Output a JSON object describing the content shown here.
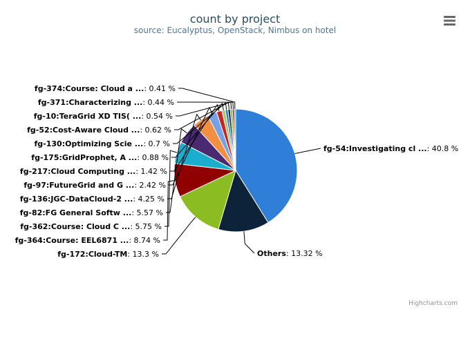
{
  "chart_data": {
    "type": "pie",
    "title": "count by project",
    "subtitle": "source: Eucalyptus, OpenStack, Nimbus on hotel",
    "credits": "Highcharts.com",
    "menu_icon": "hamburger-menu-icon",
    "slices": [
      {
        "name": "fg-54:Investigating cl ...",
        "value": 40.8,
        "label": "40.8 %",
        "color": "#2f7ed8"
      },
      {
        "name": "Others",
        "value": 13.32,
        "label": "13.32 %",
        "color": "#0d233a"
      },
      {
        "name": "fg-172:Cloud-TM",
        "value": 13.3,
        "label": "13.3 %",
        "color": "#8bbc21"
      },
      {
        "name": "fg-364:Course: EEL6871 ...",
        "value": 8.74,
        "label": "8.74 %",
        "color": "#910000"
      },
      {
        "name": "fg-362:Course: Cloud C ...",
        "value": 5.75,
        "label": "5.75 %",
        "color": "#1aadce"
      },
      {
        "name": "fg-82:FG General Softw ...",
        "value": 5.57,
        "label": "5.57 %",
        "color": "#492970"
      },
      {
        "name": "fg-136:JGC-DataCloud-2 ...",
        "value": 4.25,
        "label": "4.25 %",
        "color": "#f28f43"
      },
      {
        "name": "fg-97:FutureGrid and G ...",
        "value": 2.42,
        "label": "2.42 %",
        "color": "#77a1e5"
      },
      {
        "name": "fg-217:Cloud Computing ...",
        "value": 1.42,
        "label": "1.42 %",
        "color": "#c42525"
      },
      {
        "name": "fg-175:GridProphet, A ...",
        "value": 0.88,
        "label": "0.88 %",
        "color": "#a6c96a"
      },
      {
        "name": "fg-130:Optimizing Scie ...",
        "value": 0.7,
        "label": "0.7 %",
        "color": "#2f7ed8"
      },
      {
        "name": "fg-52:Cost-Aware Cloud ...",
        "value": 0.62,
        "label": "0.62 %",
        "color": "#0d233a"
      },
      {
        "name": "fg-10:TeraGrid XD TIS( ...",
        "value": 0.54,
        "label": "0.54 %",
        "color": "#8bbc21"
      },
      {
        "name": "fg-371:Characterizing ...",
        "value": 0.44,
        "label": "0.44 %",
        "color": "#910000"
      },
      {
        "name": "fg-374:Course: Cloud a ...",
        "value": 0.41,
        "label": "0.41 %",
        "color": "#1aadce"
      }
    ]
  }
}
